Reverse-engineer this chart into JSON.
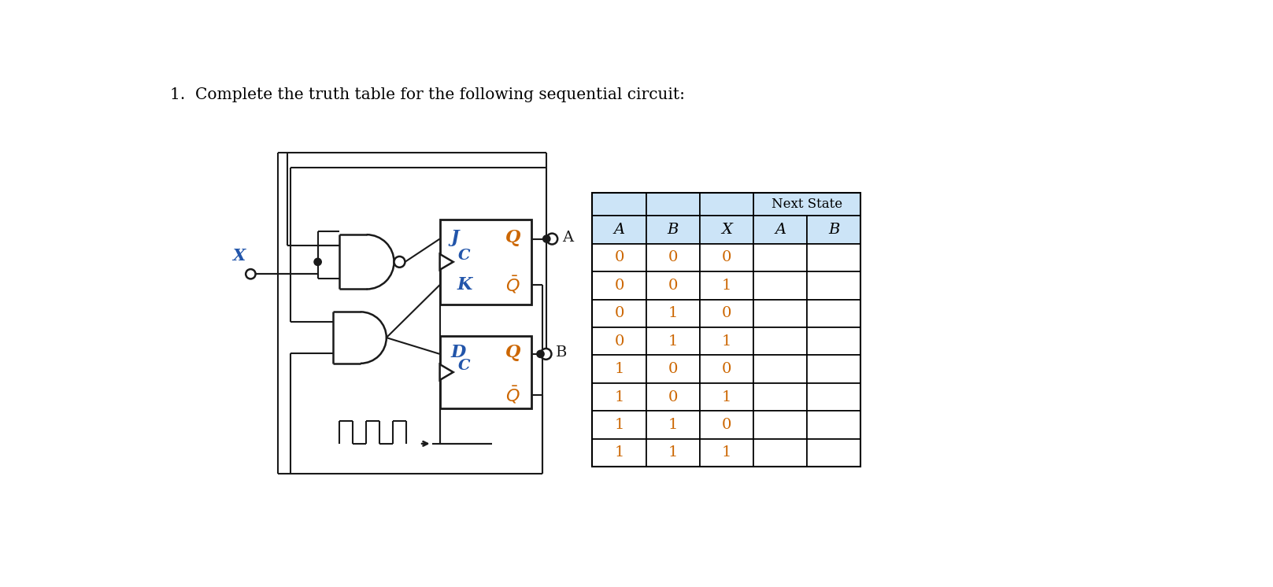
{
  "title": "1.  Complete the truth table for the following sequential circuit:",
  "title_fontsize": 14.5,
  "title_color": "#000000",
  "bg_color": "#ffffff",
  "table_header_bg": "#cce4f7",
  "table_border_color": "#000000",
  "col_headers": [
    "A",
    "B",
    "X",
    "A",
    "B"
  ],
  "next_state_label": "Next State",
  "rows": [
    [
      0,
      0,
      0,
      "",
      ""
    ],
    [
      0,
      0,
      1,
      "",
      ""
    ],
    [
      0,
      1,
      0,
      "",
      ""
    ],
    [
      0,
      1,
      1,
      "",
      ""
    ],
    [
      1,
      0,
      0,
      "",
      ""
    ],
    [
      1,
      0,
      1,
      "",
      ""
    ],
    [
      1,
      1,
      0,
      "",
      ""
    ],
    [
      1,
      1,
      1,
      "",
      ""
    ]
  ],
  "circuit_text_color": "#2255aa",
  "circuit_line_color": "#1a1a1a",
  "digit_color": "#cc6600"
}
